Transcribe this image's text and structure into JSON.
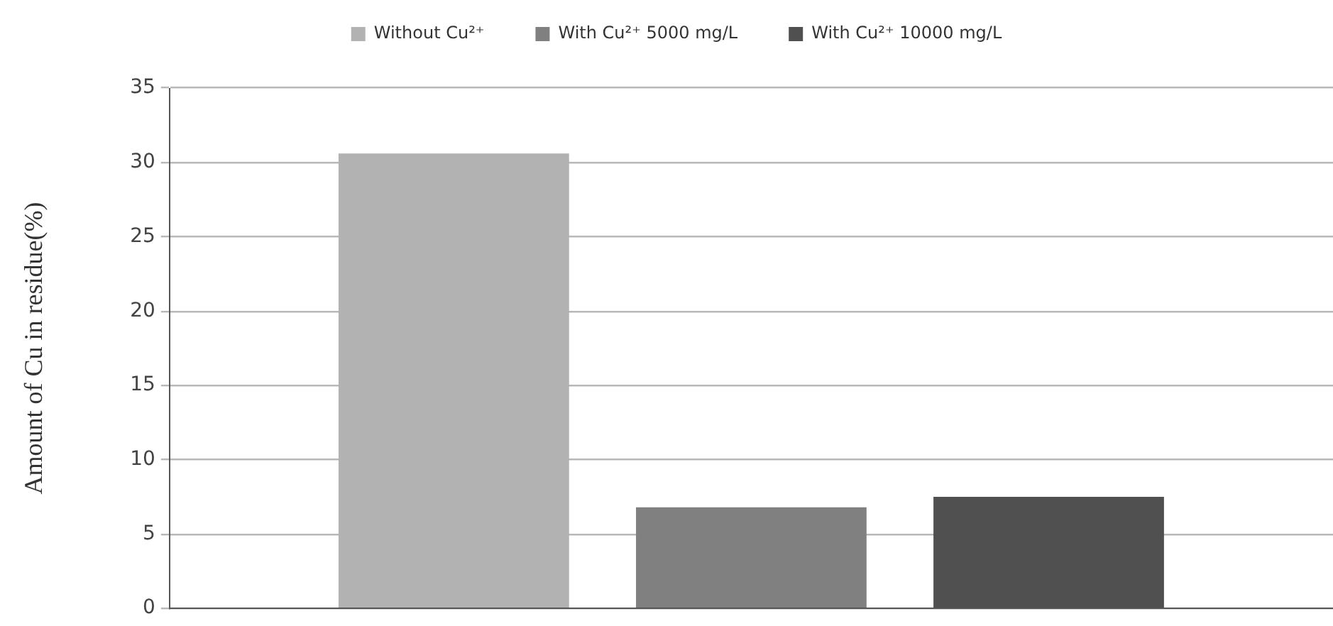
{
  "chart_data": {
    "type": "bar",
    "categories": [
      null
    ],
    "series": [
      {
        "name": "Without Cu²⁺",
        "color": "#b2b2b2",
        "values": [
          30.6
        ]
      },
      {
        "name": "With Cu²⁺ 5000 mg/L",
        "color": "#808080",
        "values": [
          6.8
        ]
      },
      {
        "name": "With Cu²⁺ 10000 mg/L",
        "color": "#505050",
        "values": [
          7.5
        ]
      }
    ],
    "ylabel": "Amount of Cu in residue(%)",
    "ylim": [
      0,
      35
    ],
    "yticks": [
      0,
      5,
      10,
      15,
      20,
      25,
      30,
      35
    ],
    "grid": "y",
    "legend": "top"
  }
}
